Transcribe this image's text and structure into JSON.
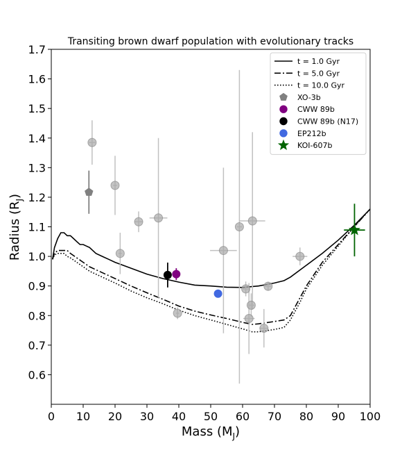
{
  "chart_data": {
    "type": "scatter",
    "title": "Transiting brown dwarf population with evolutionary tracks",
    "xlabel": "Mass (M",
    "xlabel_sub": "J",
    "xlabel_close": ")",
    "ylabel": "Radius (R",
    "ylabel_sub": "J",
    "ylabel_close": ")",
    "xlim": [
      0,
      100
    ],
    "ylim": [
      0.5,
      1.7
    ],
    "x_ticks": [
      0,
      10,
      20,
      30,
      40,
      50,
      60,
      70,
      80,
      90,
      100
    ],
    "y_ticks": [
      0.6,
      0.7,
      0.8,
      0.9,
      1.0,
      1.1,
      1.2,
      1.3,
      1.4,
      1.5,
      1.6,
      1.7
    ],
    "grid": false,
    "legend_position": "top-right",
    "legend": [
      {
        "label": "t = 1.0 Gyr",
        "kind": "line",
        "dash": "solid",
        "color": "#000000"
      },
      {
        "label": "t = 5.0 Gyr",
        "kind": "line",
        "dash": "dashdot",
        "color": "#000000"
      },
      {
        "label": "t = 10.0 Gyr",
        "kind": "line",
        "dash": "dotted",
        "color": "#000000"
      },
      {
        "label": "XO-3b",
        "kind": "marker",
        "marker": "pentagon",
        "color": "#808080"
      },
      {
        "label": "CWW 89b",
        "kind": "marker",
        "marker": "circle",
        "color": "#800080"
      },
      {
        "label": "CWW 89b (N17)",
        "kind": "marker",
        "marker": "circle",
        "color": "#000000"
      },
      {
        "label": "EP212b",
        "kind": "marker",
        "marker": "circle",
        "color": "#4169e1"
      },
      {
        "label": "KOI-607b",
        "kind": "marker",
        "marker": "star",
        "color": "#006400"
      }
    ],
    "tracks": [
      {
        "name": "t = 1.0 Gyr",
        "dash": "solid",
        "x": [
          0.4,
          1,
          2,
          3,
          4,
          5,
          6,
          7,
          8,
          9,
          10,
          11,
          12,
          13,
          14,
          16,
          18,
          20,
          25,
          30,
          35,
          40,
          45,
          50,
          55,
          60,
          62,
          65,
          70,
          73,
          75,
          80,
          85,
          90,
          95,
          100
        ],
        "y": [
          0.99,
          1.03,
          1.06,
          1.08,
          1.08,
          1.07,
          1.07,
          1.06,
          1.05,
          1.04,
          1.04,
          1.035,
          1.03,
          1.02,
          1.01,
          1.0,
          0.99,
          0.98,
          0.96,
          0.94,
          0.925,
          0.913,
          0.903,
          0.9,
          0.896,
          0.895,
          0.897,
          0.9,
          0.91,
          0.918,
          0.93,
          0.97,
          1.01,
          1.055,
          1.105,
          1.16
        ]
      },
      {
        "name": "t = 5.0 Gyr",
        "dash": "dashdot",
        "x": [
          0.4,
          1,
          2,
          3,
          4,
          5,
          6,
          8,
          10,
          12,
          15,
          20,
          25,
          30,
          35,
          40,
          45,
          50,
          55,
          60,
          63,
          65,
          70,
          73,
          75,
          78,
          80,
          85,
          90,
          95,
          100
        ],
        "y": [
          0.99,
          1.01,
          1.02,
          1.02,
          1.02,
          1.02,
          1.01,
          0.995,
          0.98,
          0.965,
          0.95,
          0.925,
          0.9,
          0.877,
          0.855,
          0.832,
          0.815,
          0.802,
          0.79,
          0.777,
          0.77,
          0.772,
          0.78,
          0.785,
          0.8,
          0.86,
          0.9,
          0.98,
          1.04,
          1.1,
          1.16
        ]
      },
      {
        "name": "t = 10.0 Gyr",
        "dash": "dotted",
        "x": [
          0.4,
          1,
          2,
          3,
          4,
          5,
          6,
          8,
          10,
          12,
          15,
          20,
          25,
          30,
          35,
          40,
          45,
          50,
          55,
          60,
          63,
          65,
          70,
          73,
          75,
          78,
          80,
          85,
          90,
          95,
          100
        ],
        "y": [
          0.99,
          1.005,
          1.01,
          1.01,
          1.01,
          1.0,
          0.995,
          0.98,
          0.965,
          0.95,
          0.935,
          0.91,
          0.883,
          0.86,
          0.84,
          0.818,
          0.8,
          0.785,
          0.77,
          0.755,
          0.745,
          0.745,
          0.753,
          0.76,
          0.785,
          0.845,
          0.89,
          0.97,
          1.035,
          1.1,
          1.16
        ]
      }
    ],
    "background_points": [
      {
        "x": 12.8,
        "y": 1.385,
        "xerr": 1.0,
        "yerr": 0.075
      },
      {
        "x": 20.0,
        "y": 1.24,
        "xerr": 0.6,
        "yerr": 0.1
      },
      {
        "x": 21.6,
        "y": 1.01,
        "xerr": 0.5,
        "yerr": 0.07
      },
      {
        "x": 27.4,
        "y": 1.117,
        "xerr": 1.2,
        "yerr": 0.035
      },
      {
        "x": 33.6,
        "y": 1.13,
        "xerr": 2.8,
        "yerr": 0.27
      },
      {
        "x": 39.6,
        "y": 0.808,
        "xerr": 0.5,
        "yerr": 0.02
      },
      {
        "x": 54.0,
        "y": 1.02,
        "xerr": 4.2,
        "yerr": 0.28
      },
      {
        "x": 59.0,
        "y": 1.1,
        "xerr": 0.8,
        "yerr": 0.53
      },
      {
        "x": 61.0,
        "y": 0.89,
        "xerr": 1.0,
        "yerr": 0.025
      },
      {
        "x": 62.0,
        "y": 0.79,
        "xerr": 1.8,
        "yerr": 0.12
      },
      {
        "x": 62.7,
        "y": 0.835,
        "xerr": 1.0,
        "yerr": 0.04
      },
      {
        "x": 63.1,
        "y": 1.12,
        "xerr": 4.0,
        "yerr": 0.3
      },
      {
        "x": 66.7,
        "y": 0.757,
        "xerr": 1.3,
        "yerr": 0.065
      },
      {
        "x": 68.0,
        "y": 0.899,
        "xerr": 1.0,
        "yerr": 0.015
      },
      {
        "x": 78.0,
        "y": 1.0,
        "xerr": 2.3,
        "yerr": 0.03
      }
    ],
    "highlighted_points": [
      {
        "name": "XO-3b",
        "marker": "pentagon",
        "color": "#808080",
        "x": 11.8,
        "y": 1.217,
        "xerr": 0.5,
        "yerr": 0.073
      },
      {
        "name": "CWW 89b",
        "marker": "circle",
        "color": "#800080",
        "x": 39.2,
        "y": 0.94,
        "xerr": 1.1,
        "yerr": 0.02
      },
      {
        "name": "CWW 89b (N17)",
        "marker": "circle",
        "color": "#000000",
        "x": 36.5,
        "y": 0.937,
        "xerr": 0.1,
        "yerr": 0.042
      },
      {
        "name": "EP212b",
        "marker": "circle",
        "color": "#4169e1",
        "x": 52.3,
        "y": 0.874,
        "xerr": 1.0,
        "yerr": 0.008
      },
      {
        "name": "KOI-607b",
        "marker": "star",
        "color": "#006400",
        "x": 95.1,
        "y": 1.089,
        "xerr": 3.3,
        "yerr": 0.089
      }
    ]
  }
}
